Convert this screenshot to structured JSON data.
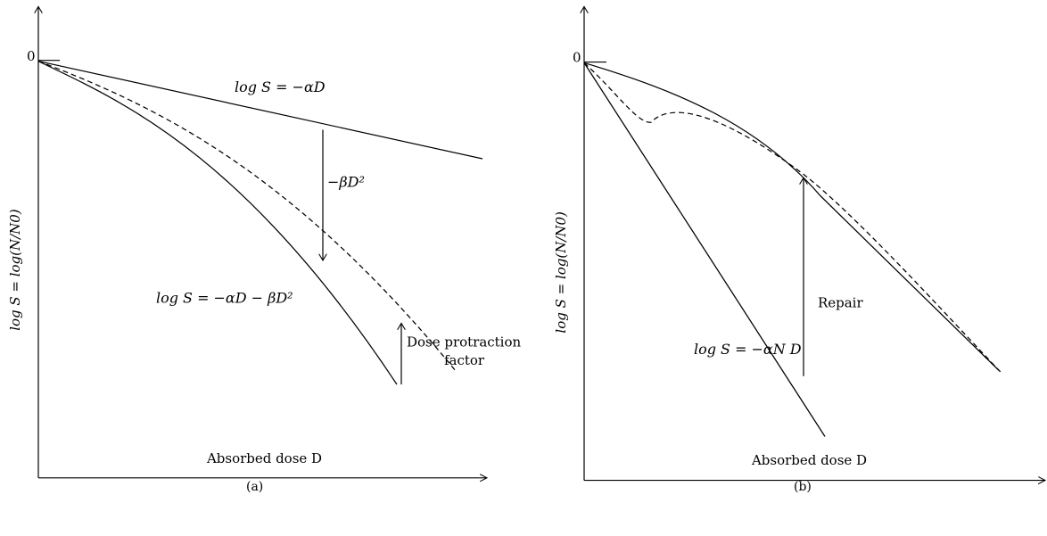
{
  "panels": [
    {
      "id": "a",
      "caption": "(a)",
      "origin_label": "0",
      "x_axis_label": "Absorbed dose D",
      "y_axis_label": "log S = log(N/N0)",
      "curves": [
        {
          "name": "linear",
          "label": "log S = −αD",
          "style": "solid"
        },
        {
          "name": "linear-quadratic",
          "label": "log S = −αD − βD²",
          "style": "solid"
        },
        {
          "name": "protracted",
          "label": "",
          "style": "dashed"
        }
      ],
      "annotations": {
        "beta_label": "−βD²",
        "protraction_label_line1": "Dose protraction",
        "protraction_label_line2": "factor"
      }
    },
    {
      "id": "b",
      "caption": "(b)",
      "origin_label": "0",
      "x_axis_label": "Absorbed dose D",
      "y_axis_label": "log S = log(N/N0)",
      "curves": [
        {
          "name": "shouldered",
          "label": "",
          "style": "solid"
        },
        {
          "name": "no-repair",
          "label": "log S = −αN D",
          "style": "solid"
        },
        {
          "name": "repair-dashed",
          "label": "",
          "style": "dashed"
        }
      ],
      "annotations": {
        "repair_label": "Repair"
      }
    }
  ],
  "colors": {
    "ink": "#000000",
    "background": "#ffffff"
  }
}
